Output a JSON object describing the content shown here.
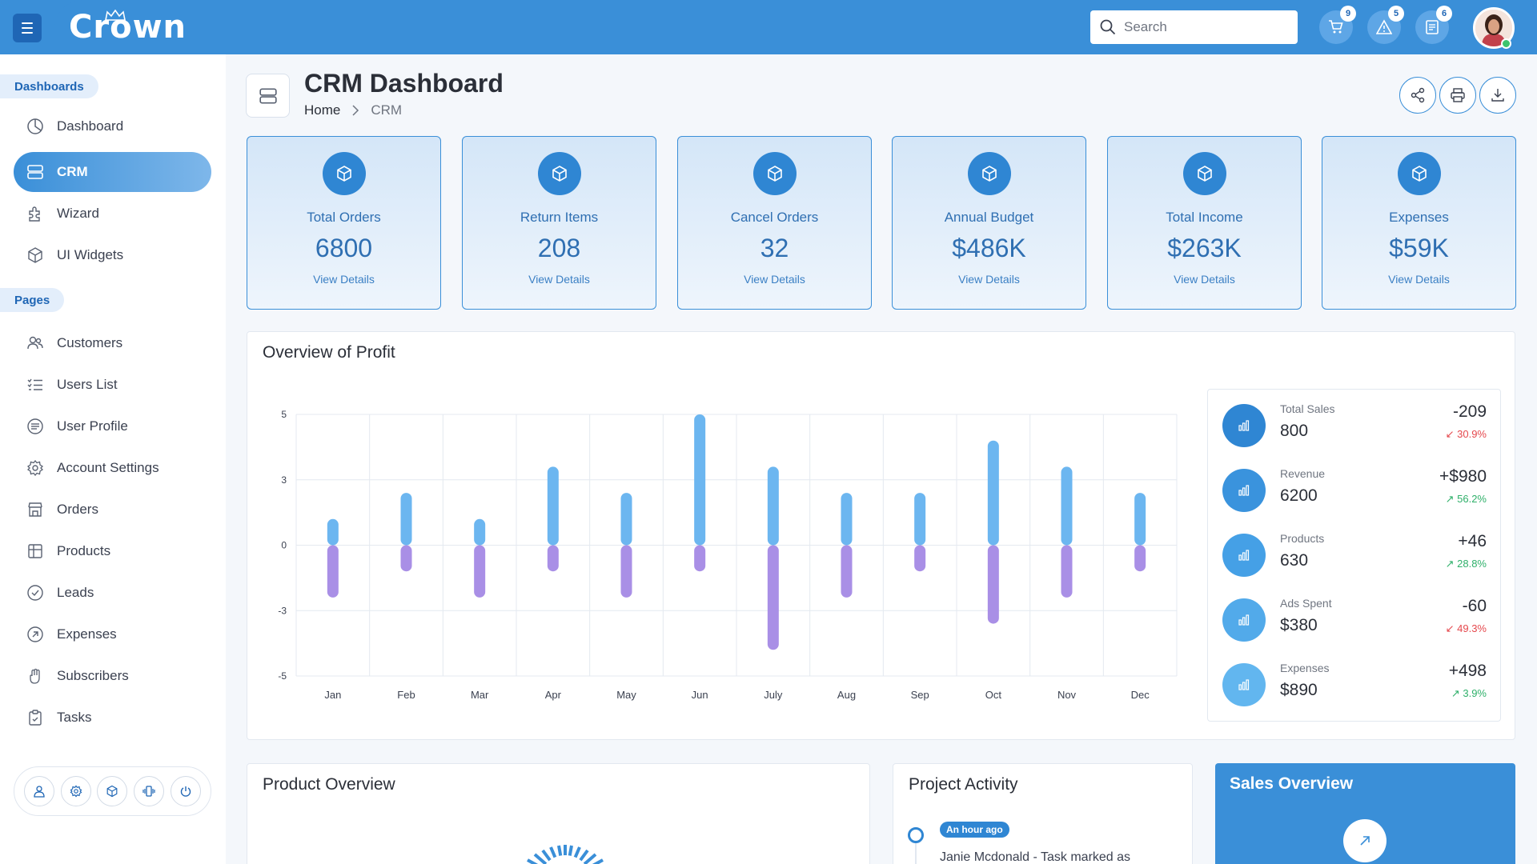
{
  "app": {
    "logo": "Crown"
  },
  "header": {
    "search_placeholder": "Search",
    "cart_count": "9",
    "alert_count": "5",
    "docs_count": "6"
  },
  "sidebar": {
    "section_dashboards": "Dashboards",
    "section_pages": "Pages",
    "dashboards": [
      {
        "label": "Dashboard",
        "icon": "pie-chart-icon"
      },
      {
        "label": "CRM",
        "icon": "server-stack-icon",
        "active": true
      },
      {
        "label": "Wizard",
        "icon": "puzzle-icon"
      },
      {
        "label": "UI Widgets",
        "icon": "cube-icon"
      }
    ],
    "pages": [
      {
        "label": "Customers",
        "icon": "users-icon"
      },
      {
        "label": "Users List",
        "icon": "list-icon"
      },
      {
        "label": "User Profile",
        "icon": "profile-icon"
      },
      {
        "label": "Account Settings",
        "icon": "gear-icon"
      },
      {
        "label": "Orders",
        "icon": "store-icon"
      },
      {
        "label": "Products",
        "icon": "products-icon"
      },
      {
        "label": "Leads",
        "icon": "check-circle-icon"
      },
      {
        "label": "Expenses",
        "icon": "arrow-circle-icon"
      },
      {
        "label": "Subscribers",
        "icon": "hand-icon"
      },
      {
        "label": "Tasks",
        "icon": "clipboard-icon"
      }
    ]
  },
  "page": {
    "title": "CRM Dashboard",
    "breadcrumb_home": "Home",
    "breadcrumb_current": "CRM"
  },
  "stats": [
    {
      "label": "Total Orders",
      "value": "6800",
      "link": "View Details"
    },
    {
      "label": "Return Items",
      "value": "208",
      "link": "View Details"
    },
    {
      "label": "Cancel Orders",
      "value": "32",
      "link": "View Details"
    },
    {
      "label": "Annual Budget",
      "value": "$486K",
      "link": "View Details"
    },
    {
      "label": "Total Income",
      "value": "$263K",
      "link": "View Details"
    },
    {
      "label": "Expenses",
      "value": "$59K",
      "link": "View Details"
    }
  ],
  "profit": {
    "title": "Overview of Profit",
    "side_stats": [
      {
        "label": "Total Sales",
        "value": "800",
        "delta": "-209",
        "pct": "30.9%",
        "trend": "down"
      },
      {
        "label": "Revenue",
        "value": "6200",
        "delta": "+$980",
        "pct": "56.2%",
        "trend": "up"
      },
      {
        "label": "Products",
        "value": "630",
        "delta": "+46",
        "pct": "28.8%",
        "trend": "up"
      },
      {
        "label": "Ads Spent",
        "value": "$380",
        "delta": "-60",
        "pct": "49.3%",
        "trend": "down"
      },
      {
        "label": "Expenses",
        "value": "$890",
        "delta": "+498",
        "pct": "3.9%",
        "trend": "up"
      }
    ]
  },
  "chart_data": {
    "type": "bar",
    "categories": [
      "Jan",
      "Feb",
      "Mar",
      "Apr",
      "May",
      "Jun",
      "July",
      "Aug",
      "Sep",
      "Oct",
      "Nov",
      "Dec"
    ],
    "series": [
      {
        "values": [
          1,
          2,
          1,
          3,
          2,
          5,
          3,
          2,
          2,
          4,
          3,
          2
        ],
        "color": "#6cb6f0"
      },
      {
        "values": [
          -2,
          -1,
          -2,
          -1,
          -2,
          -1,
          -4,
          -2,
          -1,
          -3,
          -2,
          -1
        ],
        "color": "#a98fe6"
      }
    ],
    "yticks": [
      "5",
      "3",
      "0",
      "-3",
      "-5"
    ],
    "ylim": [
      -5,
      5
    ],
    "grid": true
  },
  "product_overview": {
    "title": "Product Overview"
  },
  "project_activity": {
    "title": "Project Activity",
    "badge": "An hour ago",
    "text": "Janie Mcdonald - Task marked as"
  },
  "sales_overview": {
    "title": "Sales Overview"
  }
}
